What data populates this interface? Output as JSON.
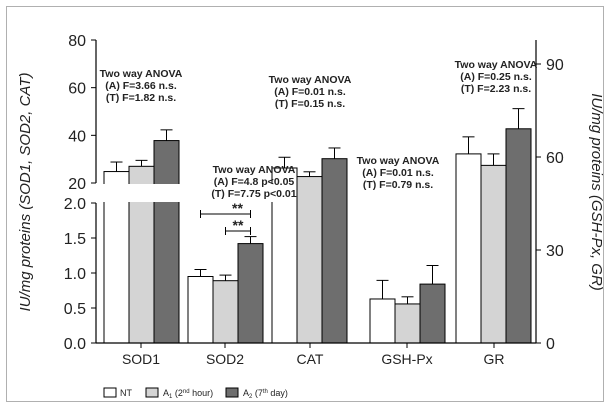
{
  "chart_data": {
    "type": "bar",
    "categories": [
      "SOD1",
      "SOD2",
      "CAT",
      "GSH-Px",
      "GR"
    ],
    "legend": [
      {
        "label": "NT",
        "color": "#ffffff"
      },
      {
        "label_main": "A",
        "label_sub": "1",
        "label_paren_open": " (2",
        "label_sup": "nd",
        "label_tail": " hour)",
        "color": "#d4d4d4"
      },
      {
        "label_main": "A",
        "label_sub": "2",
        "label_paren_open": " (7",
        "label_sup": "th",
        "label_tail": " day)",
        "color": "#6e6e6e"
      }
    ],
    "series": [
      {
        "name": "NT",
        "values": [
          24.8,
          0.95,
          26.3,
          14.2,
          61.0
        ],
        "errors": [
          4.0,
          0.1,
          4.5,
          6.0,
          5.5
        ]
      },
      {
        "name": "A1 (2nd hour)",
        "values": [
          27.0,
          0.89,
          22.7,
          12.6,
          57.3
        ],
        "errors": [
          2.5,
          0.08,
          2.0,
          2.3,
          3.7
        ]
      },
      {
        "name": "A2 (7th day)",
        "values": [
          37.8,
          1.42,
          30.2,
          19.0,
          69.1
        ],
        "errors": [
          4.5,
          0.1,
          4.5,
          6.0,
          6.5
        ]
      }
    ],
    "axes": {
      "left_upper": {
        "ticks": [
          "20",
          "40",
          "60",
          "80"
        ],
        "ylim": [
          20,
          80
        ]
      },
      "left_lower": {
        "ticks": [
          "0.0",
          "0.5",
          "1.0",
          "1.5",
          "2.0"
        ],
        "ylim": [
          0,
          2.0
        ]
      },
      "right": {
        "ticks": [
          "0",
          "30",
          "60",
          "90"
        ],
        "ylim": [
          0,
          98
        ]
      },
      "left_label": "IU/mg proteins (SOD1, SOD2, CAT)",
      "right_label": "IU/mg proteins (GSH-Px, GR)"
    },
    "annotations": [
      {
        "group": "SOD1",
        "lines": [
          "Two way ANOVA",
          "(A) F=3.66 n.s.",
          "(T) F=1.82 n.s."
        ]
      },
      {
        "group": "SOD2",
        "lines": [
          "Two way ANOVA",
          "(A) F=4.8 p<0.05",
          "(T) F=7.75 p<0.01"
        ]
      },
      {
        "group": "CAT",
        "lines": [
          "Two way ANOVA",
          "(A) F=0.01 n.s.",
          "(T) F=0.15 n.s."
        ]
      },
      {
        "group": "GSH-Px",
        "lines": [
          "Two way ANOVA",
          "(A) F=0.01 n.s.",
          "(T) F=0.79 n.s."
        ]
      },
      {
        "group": "GR",
        "lines": [
          "Two way ANOVA",
          "(A) F=0.25 n.s.",
          "(T) F=2.23 n.s."
        ]
      }
    ],
    "significance": [
      {
        "group": "SOD2",
        "from": "NT",
        "to": "A2 (7th day)",
        "label": "**"
      },
      {
        "group": "SOD2",
        "from": "A1 (2nd hour)",
        "to": "A2 (7th day)",
        "label": "**"
      }
    ]
  }
}
